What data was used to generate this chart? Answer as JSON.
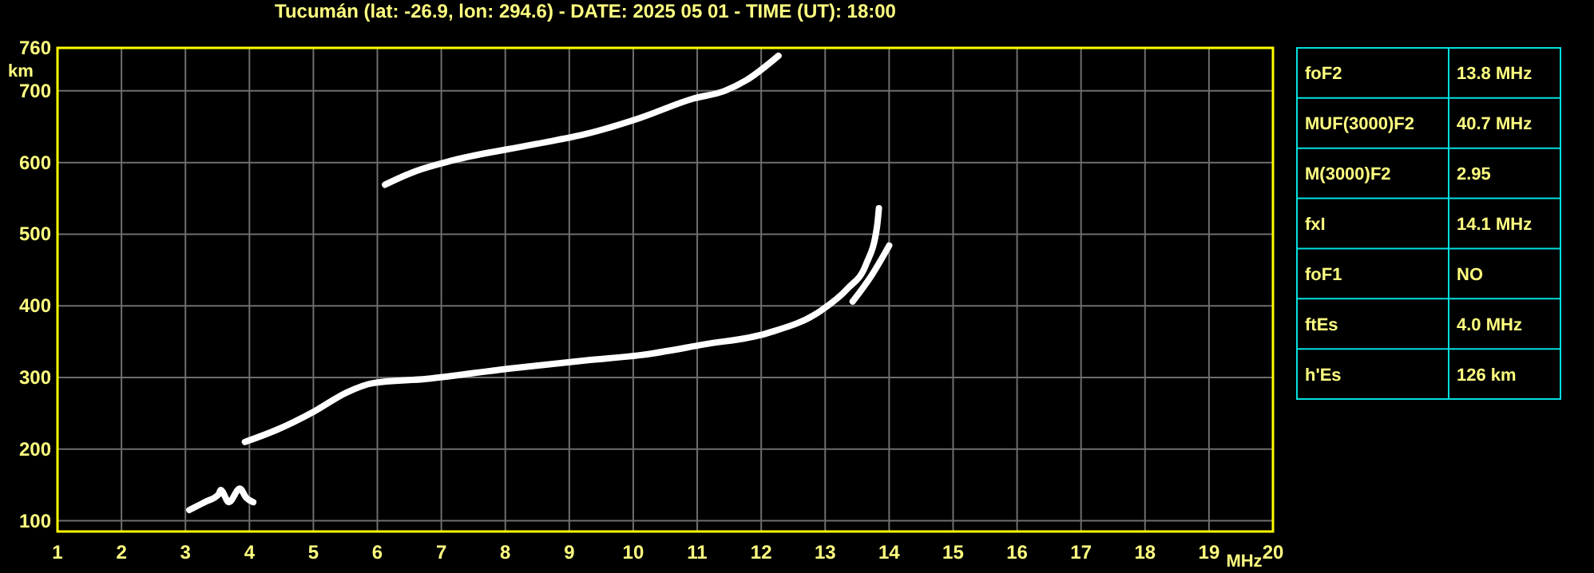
{
  "chart_data": [
    {
      "type": "line",
      "title": "Tucumán (lat: -26.9, lon: 294.6) - DATE: 2025 05 01 - TIME (UT): 18:00",
      "xlabel": "MHz",
      "ylabel": "km",
      "xlim": [
        1,
        20
      ],
      "ylim": [
        85,
        760
      ],
      "xticks": [
        1,
        2,
        3,
        4,
        5,
        6,
        7,
        8,
        9,
        10,
        11,
        12,
        13,
        14,
        15,
        16,
        17,
        18,
        19,
        20
      ],
      "yticks": [
        100,
        200,
        300,
        400,
        500,
        600,
        700,
        760
      ],
      "grid": true,
      "series": [
        {
          "color": "#ffffff",
          "x": [
            3.06,
            3.3,
            3.52,
            3.55,
            3.68,
            3.85,
            3.95,
            4.06
          ],
          "values": [
            115,
            126,
            137,
            143,
            126,
            145,
            132,
            126
          ]
        },
        {
          "color": "#ffffff",
          "x": [
            3.93,
            4.43,
            5.02,
            5.52,
            5.93,
            6.77,
            8.02,
            9.27,
            10.1,
            11.1,
            12.1,
            12.93,
            13.35,
            13.64,
            13.81,
            13.84
          ],
          "values": [
            210,
            227,
            253,
            279,
            292,
            298,
            312,
            324,
            331,
            346,
            362,
            393,
            424,
            458,
            510,
            536
          ]
        },
        {
          "color": "#ffffff",
          "x": [
            13.43,
            13.73,
            14.0
          ],
          "values": [
            406,
            443,
            484
          ]
        },
        {
          "color": "#ffffff",
          "x": [
            6.12,
            6.6,
            7.18,
            8.43,
            9.27,
            10.1,
            10.93,
            11.43,
            11.77,
            12.27
          ],
          "values": [
            569,
            588,
            603,
            625,
            640,
            662,
            689,
            700,
            715,
            749
          ]
        }
      ]
    },
    {
      "type": "other",
      "annotations": [
        "foF2",
        "13.8 MHz",
        "MUF(3000)F2",
        "40.7 MHz",
        "M(3000)F2",
        "2.95",
        "fxI",
        "14.1 MHz",
        "foF1",
        "NO",
        "ftEs",
        "4.0 MHz",
        "h'Es",
        "126 km"
      ]
    }
  ]
}
